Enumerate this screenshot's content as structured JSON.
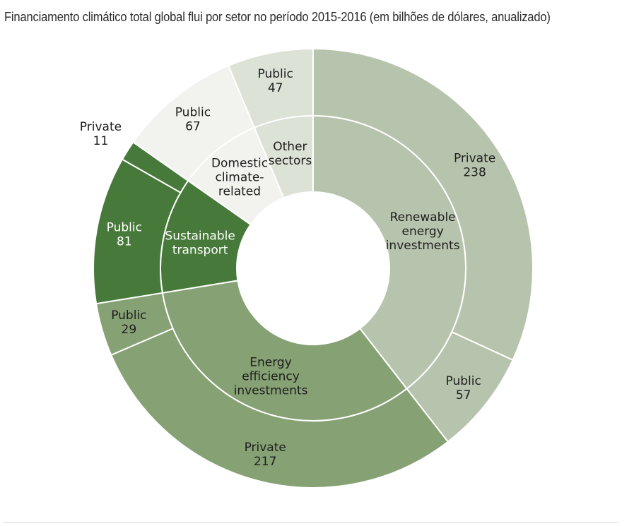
{
  "title": "Financiamento climático total global flui por setor no período 2015-2016 (em bilhões de dólares, anualizado)",
  "colors": {
    "renewable": "#b7c4ad",
    "efficiency": "#86a274",
    "transport": "#477a3a",
    "domestic": "#f2f3ef",
    "other": "#dde2d6",
    "separator": "#ffffff",
    "text_dark": "#1e1e1e",
    "text_light": "#ffffff"
  },
  "chart_data": {
    "type": "pie",
    "subtype": "sunburst",
    "title": "Financiamento climático total global flui por setor no período 2015-2016 (em bilhões de dólares, anualizado)",
    "inner_ring": [
      {
        "key": "renewable",
        "lines": [
          "Renewable",
          "energy",
          "investments"
        ],
        "value": 295
      },
      {
        "key": "efficiency",
        "lines": [
          "Energy",
          "efficiency",
          "investments"
        ],
        "value": 246
      },
      {
        "key": "transport",
        "lines": [
          "Sustainable",
          "transport"
        ],
        "value": 92
      },
      {
        "key": "domestic",
        "lines": [
          "Domestic",
          "climate-",
          "related"
        ],
        "value": 67
      },
      {
        "key": "other",
        "lines": [
          "Other",
          "sectors"
        ],
        "value": 47
      }
    ],
    "outer_ring": [
      {
        "parent": "renewable",
        "label": "Private",
        "value": 238
      },
      {
        "parent": "renewable",
        "label": "Public",
        "value": 57
      },
      {
        "parent": "efficiency",
        "label": "Private",
        "value": 217
      },
      {
        "parent": "efficiency",
        "label": "Public",
        "value": 29
      },
      {
        "parent": "transport",
        "label": "Public",
        "value": 81
      },
      {
        "parent": "transport",
        "label": "Private",
        "value": 11
      },
      {
        "parent": "domestic",
        "label": "Public",
        "value": 67
      },
      {
        "parent": "other",
        "label": "Public",
        "value": 47
      }
    ]
  }
}
